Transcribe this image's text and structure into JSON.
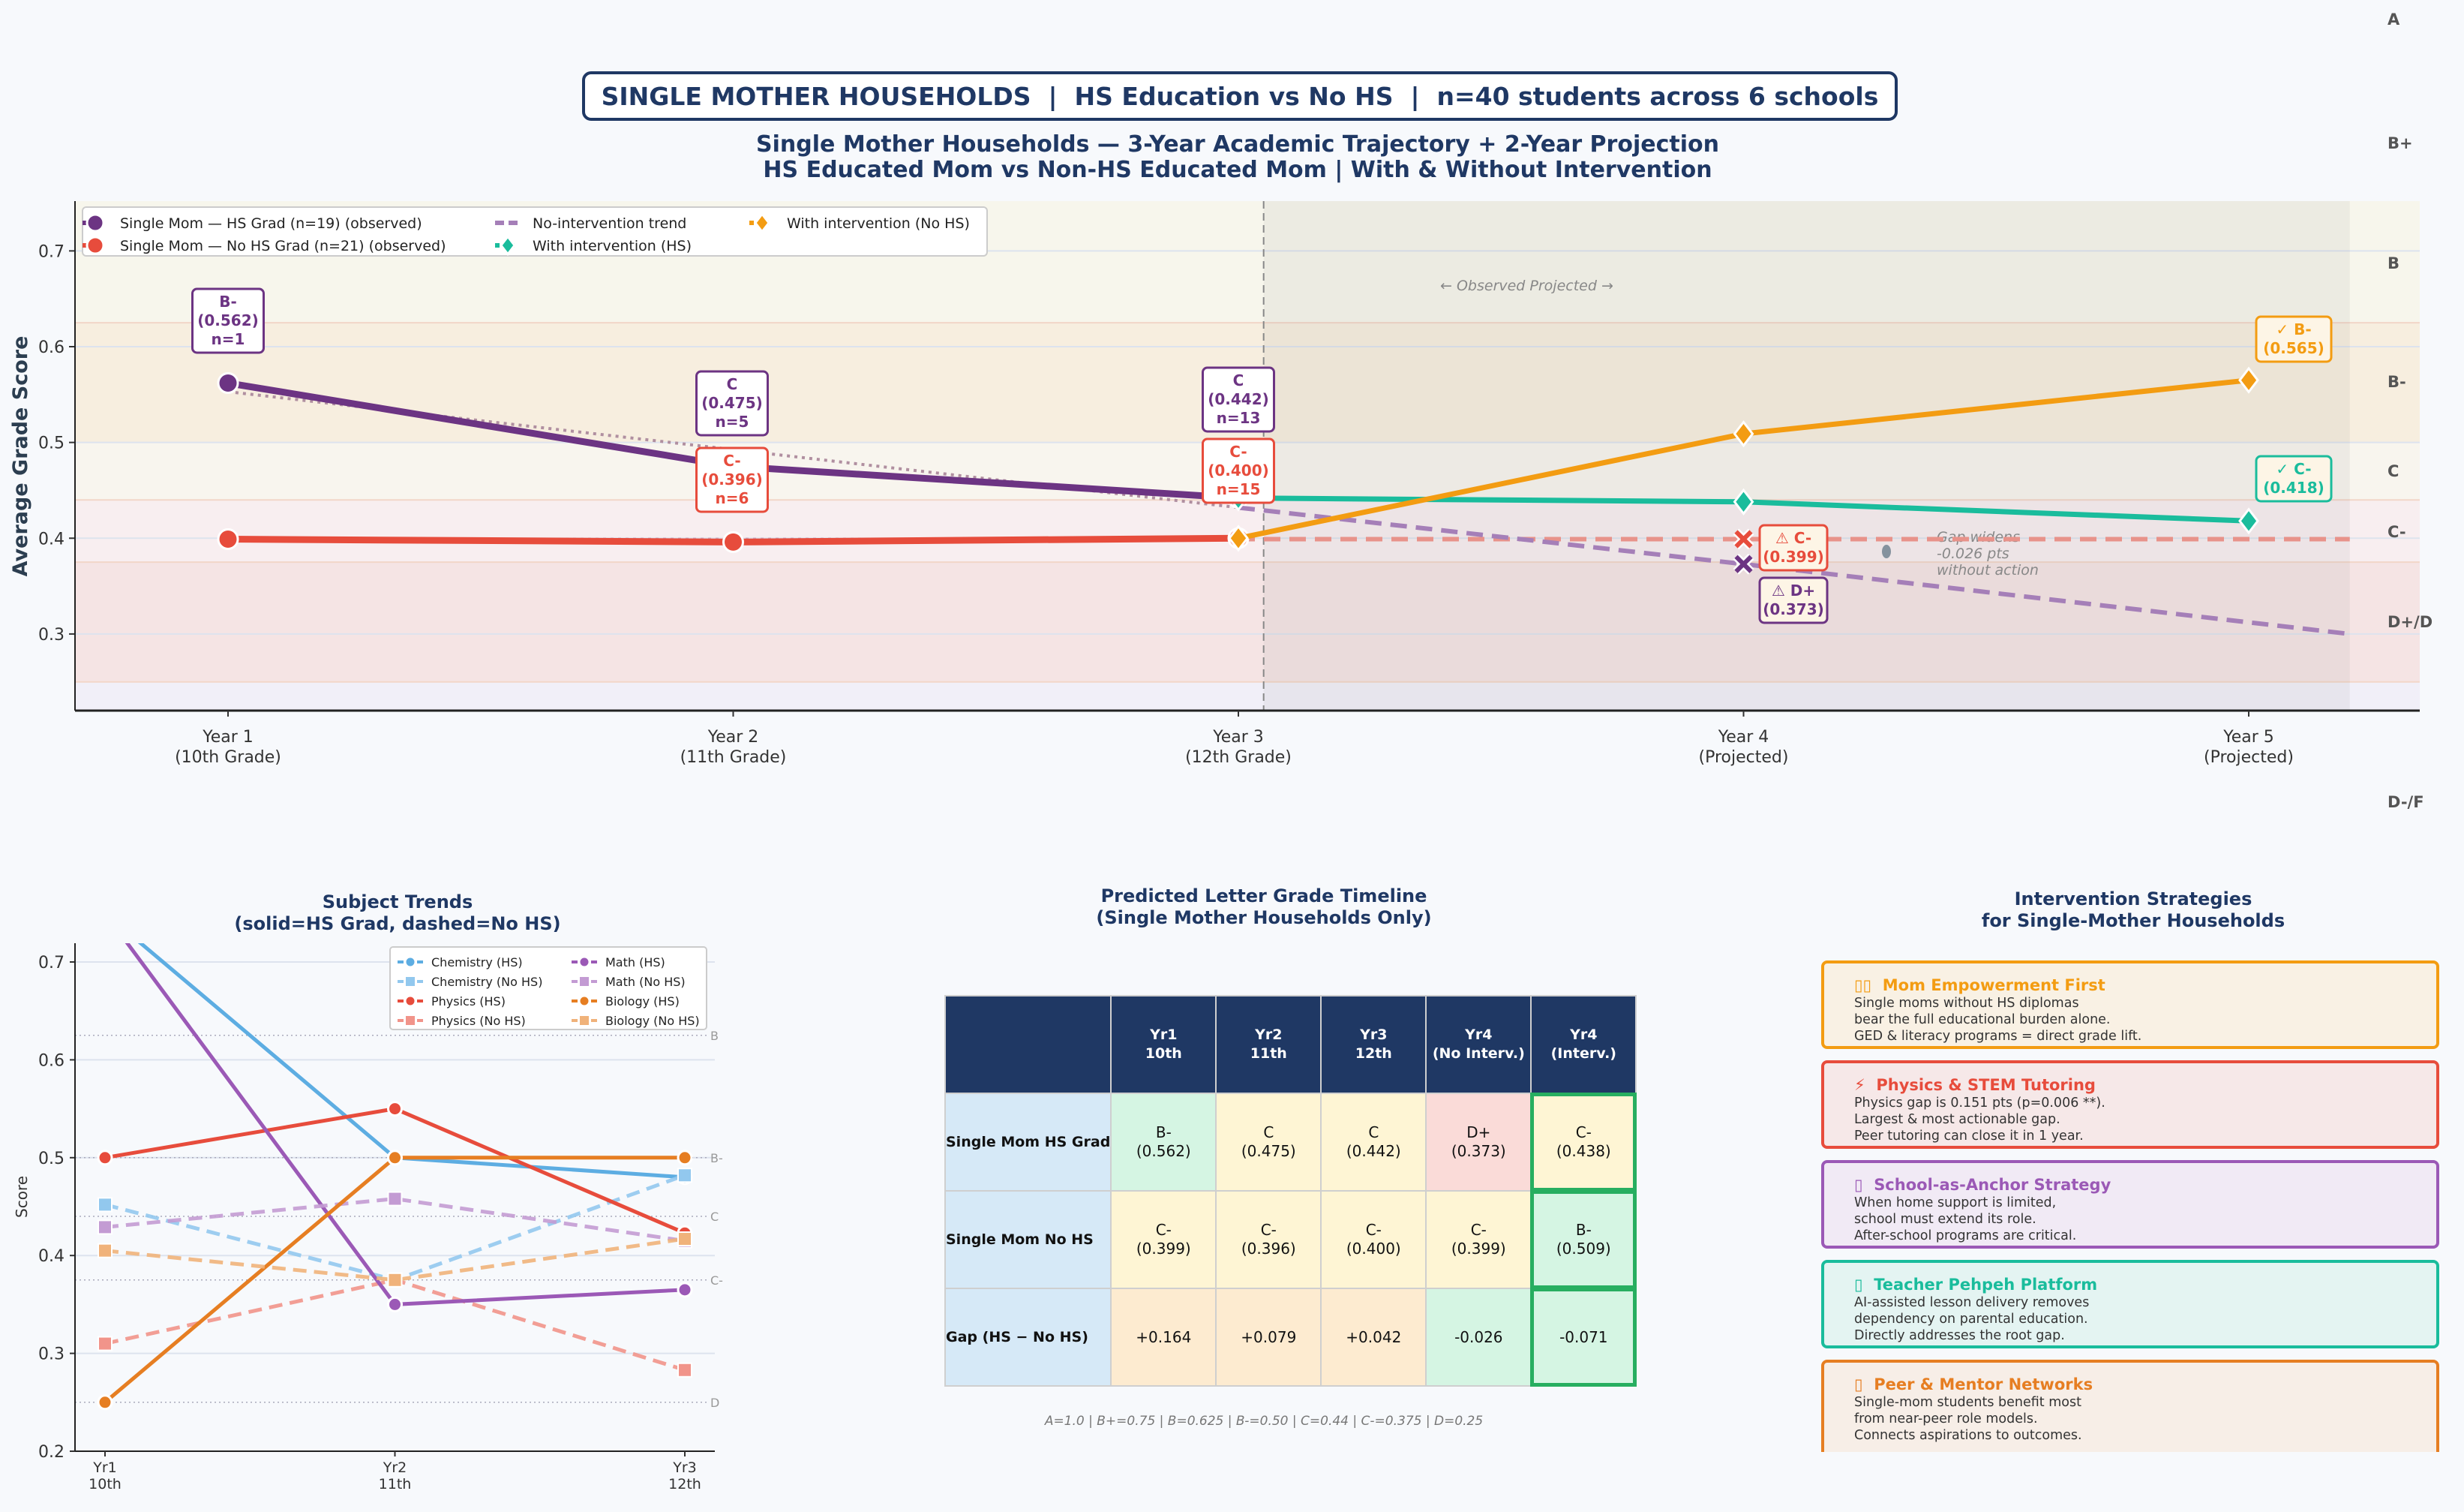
{
  "banner": "SINGLE MOTHER HOUSEHOLDS  |  HS Education vs No HS  |  n=40 students across 6 schools",
  "colors": {
    "navy": "#1f3864",
    "hs": "#6c3483",
    "nohs": "#e74c3c",
    "trend": "#a57fb8",
    "interv_hs": "#1abc9c",
    "interv_nohs": "#f39c12"
  },
  "chart_data": [
    {
      "type": "line",
      "title": "Single Mother Households — 3-Year Academic Trajectory + 2-Year Projection\nHS Educated Mom vs Non-HS Educated Mom  |  With & Without Intervention",
      "ylabel": "Average Grade Score",
      "xlabel": "",
      "ylim": [
        0.22,
        0.752
      ],
      "yticks": [
        "0.3",
        "0.4",
        "0.5",
        "0.6",
        "0.7"
      ],
      "categories": [
        "Year 1\n(10th Grade)",
        "Year 2\n(11th Grade)",
        "Year 3\n(12th Grade)",
        "Year 4\n(Projected)",
        "Year 5\n(Projected)"
      ],
      "grid": true,
      "legend_placement": "top-left",
      "series": [
        {
          "name": "Single Mom — HS Grad (n=19) (observed)",
          "x": [
            1,
            2,
            3
          ],
          "values": [
            0.562,
            0.475,
            0.442
          ],
          "color": "#6c3483",
          "style": "solid",
          "marker": "circle"
        },
        {
          "name": "Single Mom — No HS Grad (n=21) (observed)",
          "x": [
            1,
            2,
            3
          ],
          "values": [
            0.399,
            0.396,
            0.4
          ],
          "color": "#e74c3c",
          "style": "solid",
          "marker": "circle"
        },
        {
          "name": "No-intervention trend",
          "x": [
            3,
            4,
            5.2
          ],
          "values": [
            0.432,
            0.373,
            0.3
          ],
          "color": "#a57fb8",
          "style": "dashed",
          "marker": "x"
        },
        {
          "name": "With intervention (HS)",
          "x": [
            3,
            4,
            5
          ],
          "values": [
            0.442,
            0.438,
            0.418
          ],
          "color": "#1abc9c",
          "style": "solid",
          "marker": "diamond"
        },
        {
          "name": "With intervention (No HS)",
          "x": [
            3,
            4,
            5
          ],
          "values": [
            0.4,
            0.509,
            0.565
          ],
          "color": "#f39c12",
          "style": "solid",
          "marker": "diamond"
        }
      ],
      "extra_lines": [
        {
          "x": [
            1,
            3
          ],
          "values": [
            0.553,
            0.432
          ],
          "color": "#b08fa0",
          "style": "dotted"
        },
        {
          "x": [
            1,
            3
          ],
          "values": [
            0.399,
            0.399
          ],
          "color": "#c9b0c9",
          "style": "dotted"
        },
        {
          "x": [
            3,
            5.2
          ],
          "values": [
            0.399,
            0.399
          ],
          "color": "#e8928a",
          "style": "dashed",
          "marker_at": [
            4
          ]
        }
      ],
      "grade_bands": [
        {
          "from": 0.625,
          "to": 0.752,
          "color": "#f7f6ec"
        },
        {
          "from": 0.5,
          "to": 0.625,
          "color": "#f7eedf"
        },
        {
          "from": 0.44,
          "to": 0.5,
          "color": "#f8f5ee"
        },
        {
          "from": 0.375,
          "to": 0.44,
          "color": "#f8eef0"
        },
        {
          "from": 0.25,
          "to": 0.375,
          "color": "#f5e4e4"
        },
        {
          "from": 0.22,
          "to": 0.25,
          "color": "#f1eff8"
        }
      ],
      "grade_labels": [
        "A",
        "B+",
        "B",
        "B-",
        "C",
        "C-",
        "D+/D",
        "D-/F"
      ],
      "projection_start": 3.05,
      "projection_end": 5.2,
      "phase_note": "← Observed      Projected →",
      "gap_note": "Gap widens\n-0.026 pts\nwithout action",
      "point_labels": [
        {
          "x": 1,
          "y": 0.562,
          "text": "B-\n(0.562)\nn=1",
          "color": "#6c3483",
          "border": "#6c3483"
        },
        {
          "x": 2,
          "y": 0.475,
          "text": "C\n(0.475)\nn=5",
          "color": "#6c3483",
          "border": "#6c3483"
        },
        {
          "x": 2,
          "y": 0.396,
          "text": "C-\n(0.396)\nn=6",
          "color": "#e74c3c",
          "border": "#e74c3c"
        },
        {
          "x": 3,
          "y": 0.442,
          "text": "C\n(0.442)\nn=13",
          "color": "#6c3483",
          "border": "#6c3483"
        },
        {
          "x": 3,
          "y": 0.4,
          "text": "C-\n(0.400)\nn=15",
          "color": "#e74c3c",
          "border": "#e74c3c"
        },
        {
          "x": 4,
          "y": 0.373,
          "text": "⚠ D+\n(0.373)",
          "color": "#6c3483",
          "border": "#6c3483"
        },
        {
          "x": 4,
          "y": 0.399,
          "text": "⚠ C-\n(0.399)",
          "color": "#e74c3c",
          "border": "#e74c3c"
        },
        {
          "x": 5,
          "y": 0.565,
          "text": "✓ B-\n(0.565)",
          "color": "#f39c12",
          "border": "#f39c12"
        },
        {
          "x": 5,
          "y": 0.418,
          "text": "✓ C-\n(0.418)",
          "color": "#1abc9c",
          "border": "#1abc9c"
        }
      ]
    },
    {
      "type": "line",
      "title": "Subject Trends\n(solid=HS Grad, dashed=No HS)",
      "ylabel": "Score",
      "xlabel": "",
      "ylim": [
        0.2,
        0.72
      ],
      "yticks": [
        "0.2",
        "0.3",
        "0.4",
        "0.5",
        "0.6",
        "0.7"
      ],
      "categories": [
        "Yr1\n10th",
        "Yr2\n11th",
        "Yr3\n12th"
      ],
      "grid": true,
      "legend_placement": "top-right",
      "reference_lines": [
        {
          "value": 0.625,
          "label": "B"
        },
        {
          "value": 0.5,
          "label": "B-"
        },
        {
          "value": 0.44,
          "label": "C"
        },
        {
          "value": 0.375,
          "label": "C-"
        },
        {
          "value": 0.25,
          "label": "D"
        }
      ],
      "series": [
        {
          "name": "Chemistry (HS)",
          "values": [
            0.75,
            0.5,
            0.48
          ],
          "color": "#5dade2",
          "style": "solid",
          "marker": "circle"
        },
        {
          "name": "Chemistry (No HS)",
          "values": [
            0.452,
            0.375,
            0.482
          ],
          "color": "#92c8ee",
          "style": "dashed",
          "marker": "square"
        },
        {
          "name": "Physics (HS)",
          "values": [
            0.5,
            0.55,
            0.423
          ],
          "color": "#e74c3c",
          "style": "solid",
          "marker": "circle"
        },
        {
          "name": "Physics (No HS)",
          "values": [
            0.31,
            0.375,
            0.283
          ],
          "color": "#f1948a",
          "style": "dashed",
          "marker": "square"
        },
        {
          "name": "Math (HS)",
          "values": [
            0.75,
            0.35,
            0.365
          ],
          "color": "#9b59b6",
          "style": "solid",
          "marker": "circle"
        },
        {
          "name": "Math (No HS)",
          "values": [
            0.429,
            0.458,
            0.415
          ],
          "color": "#c39bd3",
          "style": "dashed",
          "marker": "square"
        },
        {
          "name": "Biology (HS)",
          "values": [
            0.25,
            0.5,
            0.5
          ],
          "color": "#e67e22",
          "style": "solid",
          "marker": "circle"
        },
        {
          "name": "Biology (No HS)",
          "values": [
            0.405,
            0.375,
            0.417
          ],
          "color": "#f0b27a",
          "style": "dashed",
          "marker": "square"
        }
      ]
    }
  ],
  "grade_table": {
    "title": "Predicted Letter Grade Timeline\n(Single Mother Households Only)",
    "columns": [
      "",
      "Yr1\n10th",
      "Yr2\n11th",
      "Yr3\n12th",
      "Yr4\n(No Interv.)",
      "Yr4\n(Interv.)"
    ],
    "rows": [
      {
        "label": "Single Mom HS Grad",
        "cells": [
          "B-\n(0.562)",
          "C\n(0.475)",
          "C\n(0.442)",
          "D+\n(0.373)",
          "C-\n(0.438)"
        ],
        "colors": [
          "#d5f5e3",
          "#fef5d4",
          "#fef5d4",
          "#fadbd8",
          "#fef5d4"
        ]
      },
      {
        "label": "Single Mom No HS",
        "cells": [
          "C-\n(0.399)",
          "C-\n(0.396)",
          "C-\n(0.400)",
          "C-\n(0.399)",
          "B-\n(0.509)"
        ],
        "colors": [
          "#fef5d4",
          "#fef5d4",
          "#fef5d4",
          "#fef5d4",
          "#d5f5e3"
        ]
      },
      {
        "label": "Gap (HS − No HS)",
        "cells": [
          "+0.164",
          "+0.079",
          "+0.042",
          "-0.026",
          "-0.071"
        ],
        "colors": [
          "#fdebd0",
          "#fdebd0",
          "#fdebd0",
          "#d5f5e3",
          "#d5f5e3"
        ]
      }
    ],
    "footnote": "A=1.0 | B+=0.75 | B=0.625 | B-=0.50 | C=0.44 | C-=0.375 | D=0.25"
  },
  "strategies": {
    "title": "Intervention Strategies\nfor Single-Mother Households",
    "cards": [
      {
        "icon": "people-icon",
        "glyph": "▯▯",
        "title": "Mom Empowerment First",
        "body": "Single moms without HS diplomas\nbear the full educational burden alone.\nGED & literacy programs = direct grade lift.",
        "color": "#f39c12",
        "bg": "#f9f1e4"
      },
      {
        "icon": "lightning-icon",
        "glyph": "⚡",
        "title": "Physics & STEM Tutoring",
        "body": "Physics gap is 0.151 pts (p=0.006 **).\nLargest & most actionable gap.\nPeer tutoring can close it in 1 year.",
        "color": "#e74c3c",
        "bg": "#f6e8e8"
      },
      {
        "icon": "school-icon",
        "glyph": "▯",
        "title": "School-as-Anchor Strategy",
        "body": "When home support is limited,\nschool must extend its role.\nAfter-school programs are critical.",
        "color": "#9b59b6",
        "bg": "#f1eaf5"
      },
      {
        "icon": "laptop-icon",
        "glyph": "▯",
        "title": "Teacher Pehpeh Platform",
        "body": "AI-assisted lesson delivery removes\ndependency on parental education.\nDirectly addresses the root gap.",
        "color": "#1abc9c",
        "bg": "#e4f4f2"
      },
      {
        "icon": "handshake-icon",
        "glyph": "▯",
        "title": "Peer & Mentor Networks",
        "body": "Single-mom students benefit most\nfrom near-peer role models.\nConnects aspirations to outcomes.",
        "color": "#e67e22",
        "bg": "#f7eee7"
      }
    ]
  }
}
